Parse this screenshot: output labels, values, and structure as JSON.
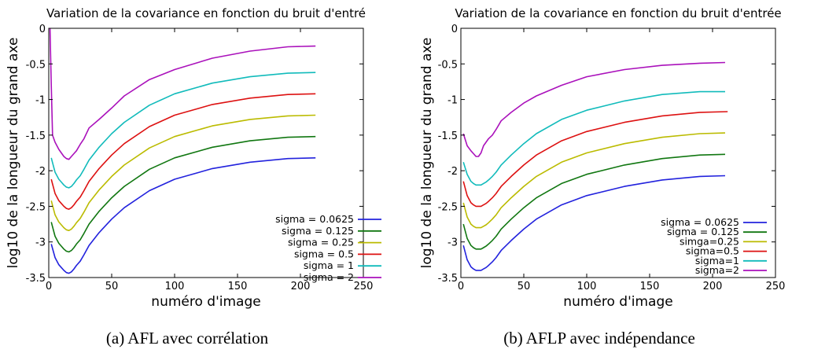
{
  "chart_data": [
    {
      "type": "line",
      "panel": "a",
      "title": "Variation de la covariance en fonction du bruit d'entré",
      "caption": "(a)  AFL avec corrélation",
      "xlabel": "numéro d'image",
      "ylabel": "log10 de la longueur du grand axe",
      "xlim": [
        0,
        250
      ],
      "ylim": [
        -3.5,
        0
      ],
      "xticks": [
        "0",
        "50",
        "100",
        "150",
        "200",
        "250"
      ],
      "yticks": [
        "0",
        "-0.5",
        "-1",
        "-1.5",
        "-2",
        "-2.5",
        "-3",
        "-3.5"
      ],
      "legend_position": "bottom-right",
      "series": [
        {
          "name": "sigma = 0.0625",
          "color": "#2222dd",
          "x": [
            2,
            5,
            8,
            10,
            12,
            14,
            16,
            18,
            20,
            22,
            25,
            28,
            32,
            40,
            50,
            60,
            80,
            100,
            130,
            160,
            190,
            212
          ],
          "y": [
            -3.03,
            -3.22,
            -3.32,
            -3.36,
            -3.4,
            -3.43,
            -3.44,
            -3.42,
            -3.38,
            -3.33,
            -3.27,
            -3.18,
            -3.05,
            -2.87,
            -2.68,
            -2.52,
            -2.28,
            -2.12,
            -1.97,
            -1.88,
            -1.83,
            -1.82
          ]
        },
        {
          "name": "sigma = 0.125",
          "color": "#117711",
          "x": [
            2,
            5,
            8,
            10,
            12,
            14,
            16,
            18,
            20,
            22,
            25,
            28,
            32,
            40,
            50,
            60,
            80,
            100,
            130,
            160,
            190,
            212
          ],
          "y": [
            -2.72,
            -2.92,
            -3.02,
            -3.06,
            -3.1,
            -3.13,
            -3.14,
            -3.12,
            -3.08,
            -3.03,
            -2.97,
            -2.88,
            -2.75,
            -2.57,
            -2.38,
            -2.22,
            -1.98,
            -1.82,
            -1.67,
            -1.58,
            -1.53,
            -1.52
          ]
        },
        {
          "name": "sigma = 0.25",
          "color": "#bbbb00",
          "x": [
            2,
            5,
            8,
            10,
            12,
            14,
            16,
            18,
            20,
            22,
            25,
            28,
            32,
            40,
            50,
            60,
            80,
            100,
            130,
            160,
            190,
            212
          ],
          "y": [
            -2.42,
            -2.62,
            -2.72,
            -2.76,
            -2.8,
            -2.83,
            -2.84,
            -2.82,
            -2.78,
            -2.73,
            -2.67,
            -2.58,
            -2.45,
            -2.27,
            -2.08,
            -1.92,
            -1.68,
            -1.52,
            -1.37,
            -1.28,
            -1.23,
            -1.22
          ]
        },
        {
          "name": "sigma = 0.5",
          "color": "#dd1111",
          "x": [
            2,
            5,
            8,
            10,
            12,
            14,
            16,
            18,
            20,
            22,
            25,
            28,
            32,
            40,
            50,
            60,
            80,
            100,
            130,
            160,
            190,
            212
          ],
          "y": [
            -2.12,
            -2.32,
            -2.42,
            -2.46,
            -2.5,
            -2.53,
            -2.54,
            -2.52,
            -2.48,
            -2.43,
            -2.37,
            -2.28,
            -2.15,
            -1.97,
            -1.78,
            -1.62,
            -1.38,
            -1.22,
            -1.07,
            -0.98,
            -0.93,
            -0.92
          ]
        },
        {
          "name": "sigma = 1",
          "color": "#11bbbb",
          "x": [
            2,
            5,
            8,
            10,
            12,
            14,
            16,
            18,
            20,
            22,
            25,
            28,
            32,
            40,
            50,
            60,
            80,
            100,
            130,
            160,
            190,
            212
          ],
          "y": [
            -1.82,
            -2.02,
            -2.12,
            -2.16,
            -2.2,
            -2.23,
            -2.24,
            -2.22,
            -2.18,
            -2.13,
            -2.07,
            -1.98,
            -1.85,
            -1.67,
            -1.48,
            -1.32,
            -1.08,
            -0.92,
            -0.77,
            -0.68,
            -0.63,
            -0.62
          ]
        },
        {
          "name": "sigma = 2",
          "color": "#aa11bb",
          "x": [
            1,
            2,
            3,
            5,
            8,
            10,
            12,
            14,
            16,
            18,
            20,
            22,
            25,
            28,
            32,
            40,
            50,
            60,
            80,
            100,
            130,
            160,
            190,
            212
          ],
          "y": [
            0.0,
            -0.8,
            -1.5,
            -1.6,
            -1.7,
            -1.75,
            -1.8,
            -1.83,
            -1.84,
            -1.8,
            -1.76,
            -1.72,
            -1.63,
            -1.55,
            -1.4,
            -1.28,
            -1.12,
            -0.95,
            -0.72,
            -0.58,
            -0.42,
            -0.32,
            -0.26,
            -0.25
          ]
        }
      ]
    },
    {
      "type": "line",
      "panel": "b",
      "title": "Variation de la covariance en fonction du bruit d'entrée",
      "caption": "(b)  AFLP avec indépendance",
      "xlabel": "numéro d'image",
      "ylabel": "log10 de la longueur du grand axe",
      "xlim": [
        0,
        250
      ],
      "ylim": [
        -3.5,
        0
      ],
      "xticks": [
        "0",
        "50",
        "100",
        "150",
        "200",
        "250"
      ],
      "yticks": [
        "0",
        "-0.5",
        "-1",
        "-1.5",
        "-2",
        "-2.5",
        "-3",
        "-3.5"
      ],
      "legend_position": "bottom-right",
      "series": [
        {
          "name": "sigma = 0.0625",
          "color": "#2222dd",
          "x": [
            2,
            5,
            8,
            10,
            12,
            14,
            16,
            18,
            20,
            22,
            25,
            28,
            32,
            40,
            50,
            60,
            80,
            100,
            130,
            160,
            190,
            210
          ],
          "y": [
            -3.05,
            -3.25,
            -3.35,
            -3.38,
            -3.4,
            -3.4,
            -3.4,
            -3.38,
            -3.36,
            -3.33,
            -3.28,
            -3.22,
            -3.12,
            -2.98,
            -2.82,
            -2.68,
            -2.48,
            -2.35,
            -2.22,
            -2.13,
            -2.08,
            -2.07
          ]
        },
        {
          "name": "sigma = 0.125",
          "color": "#117711",
          "x": [
            2,
            5,
            8,
            10,
            12,
            14,
            16,
            18,
            20,
            22,
            25,
            28,
            32,
            40,
            50,
            60,
            80,
            100,
            130,
            160,
            190,
            210
          ],
          "y": [
            -2.75,
            -2.95,
            -3.05,
            -3.08,
            -3.1,
            -3.1,
            -3.1,
            -3.08,
            -3.06,
            -3.03,
            -2.98,
            -2.92,
            -2.82,
            -2.68,
            -2.52,
            -2.38,
            -2.18,
            -2.05,
            -1.92,
            -1.83,
            -1.78,
            -1.77
          ]
        },
        {
          "name": "simga=0.25",
          "color": "#bbbb00",
          "x": [
            2,
            5,
            8,
            10,
            12,
            14,
            16,
            18,
            20,
            22,
            25,
            28,
            32,
            40,
            50,
            60,
            80,
            100,
            130,
            160,
            190,
            210
          ],
          "y": [
            -2.45,
            -2.65,
            -2.75,
            -2.78,
            -2.8,
            -2.8,
            -2.8,
            -2.78,
            -2.76,
            -2.73,
            -2.68,
            -2.62,
            -2.52,
            -2.38,
            -2.22,
            -2.08,
            -1.88,
            -1.75,
            -1.62,
            -1.53,
            -1.48,
            -1.47
          ]
        },
        {
          "name": "sigma=0.5",
          "color": "#dd1111",
          "x": [
            2,
            5,
            8,
            10,
            12,
            14,
            16,
            18,
            20,
            22,
            25,
            28,
            32,
            40,
            50,
            60,
            80,
            100,
            130,
            160,
            190,
            212
          ],
          "y": [
            -2.15,
            -2.35,
            -2.45,
            -2.48,
            -2.5,
            -2.5,
            -2.5,
            -2.48,
            -2.46,
            -2.43,
            -2.38,
            -2.32,
            -2.22,
            -2.08,
            -1.92,
            -1.78,
            -1.58,
            -1.45,
            -1.32,
            -1.23,
            -1.18,
            -1.17
          ]
        },
        {
          "name": "sigma=1",
          "color": "#11bbbb",
          "x": [
            2,
            5,
            8,
            10,
            12,
            14,
            16,
            18,
            20,
            22,
            25,
            28,
            32,
            40,
            50,
            60,
            80,
            100,
            130,
            160,
            190,
            210
          ],
          "y": [
            -1.88,
            -2.05,
            -2.15,
            -2.18,
            -2.2,
            -2.2,
            -2.2,
            -2.18,
            -2.16,
            -2.13,
            -2.08,
            -2.02,
            -1.92,
            -1.78,
            -1.62,
            -1.48,
            -1.28,
            -1.15,
            -1.02,
            -0.93,
            -0.89,
            -0.89
          ]
        },
        {
          "name": "sigma=2",
          "color": "#aa11bb",
          "x": [
            2,
            5,
            8,
            10,
            12,
            14,
            16,
            18,
            20,
            22,
            25,
            28,
            32,
            40,
            50,
            60,
            80,
            100,
            130,
            160,
            190,
            210
          ],
          "y": [
            -1.48,
            -1.65,
            -1.72,
            -1.76,
            -1.8,
            -1.8,
            -1.75,
            -1.65,
            -1.6,
            -1.55,
            -1.5,
            -1.42,
            -1.3,
            -1.18,
            -1.05,
            -0.95,
            -0.8,
            -0.68,
            -0.58,
            -0.52,
            -0.49,
            -0.48
          ]
        }
      ]
    }
  ]
}
